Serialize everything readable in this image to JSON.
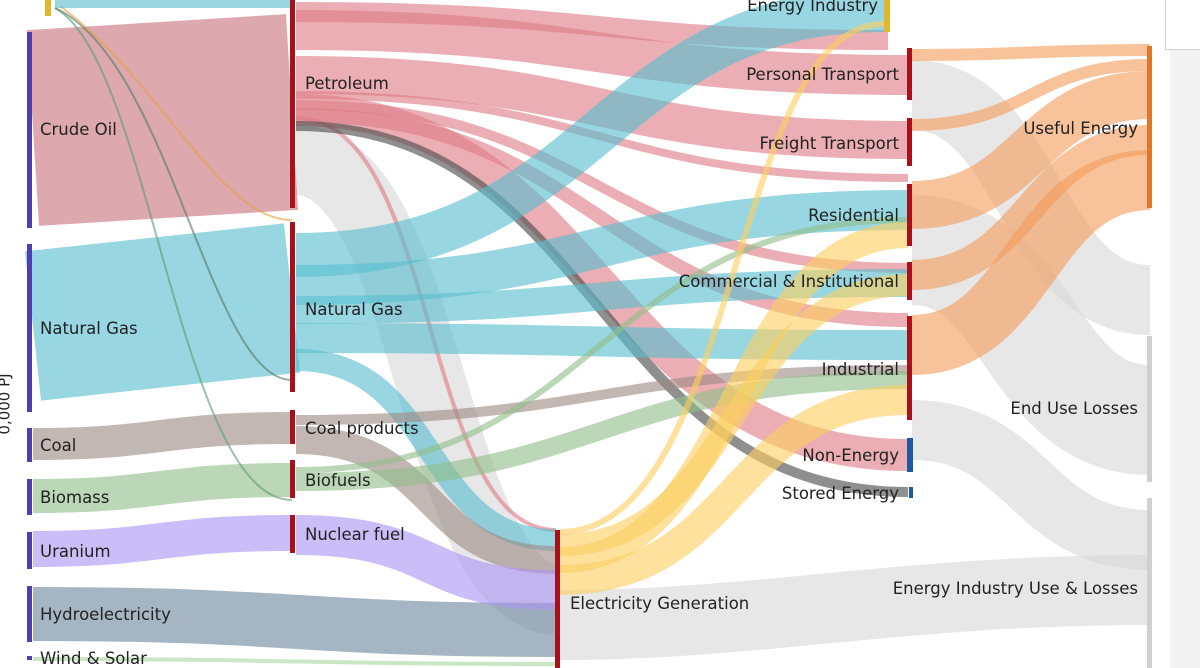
{
  "y_axis_label": "0,000 PJ",
  "colors": {
    "petroleum": "#de7d86",
    "natural_gas": "#59bfcf",
    "coal": "#9e8a84",
    "biofuel": "#92bf8a",
    "nuclear": "#ab94f2",
    "hydro": "#6f889e",
    "wind_solar": "#a8d89e",
    "electricity": "#fccf60",
    "useful": "#f49c5c",
    "losses": "#d8d8d8",
    "dark_stream": "#4a4a4a"
  },
  "nodes": {
    "crude_oil": "Crude Oil",
    "natural_gas_src": "Natural Gas",
    "coal": "Coal",
    "biomass": "Biomass",
    "uranium": "Uranium",
    "hydroelectricity": "Hydroelectricity",
    "wind_solar": "Wind & Solar",
    "petroleum": "Petroleum",
    "natural_gas_mid": "Natural Gas",
    "coal_products": "Coal products",
    "biofuels": "Biofuels",
    "nuclear_fuel": "Nuclear fuel",
    "electricity_generation": "Electricity Generation",
    "energy_industry": "Energy Industry",
    "personal_transport": "Personal Transport",
    "freight_transport": "Freight Transport",
    "residential": "Residential",
    "commercial": "Commercial & Institutional",
    "industrial": "Industrial",
    "non_energy": "Non-Energy",
    "stored_energy": "Stored Energy",
    "useful_energy": "Useful Energy",
    "end_use_losses": "End Use Losses",
    "energy_industry_losses": "Energy Industry Use & Losses"
  }
}
